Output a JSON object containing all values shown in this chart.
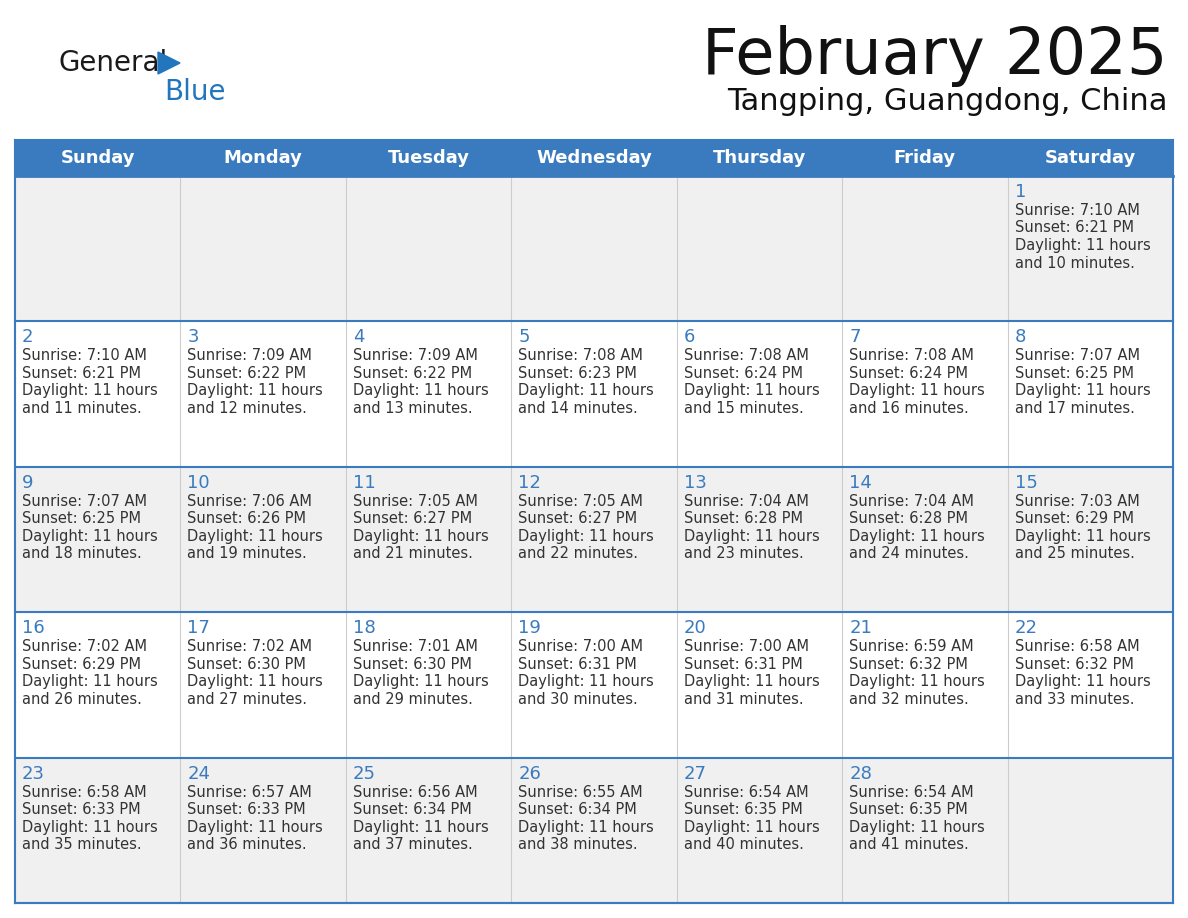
{
  "title": "February 2025",
  "subtitle": "Tangping, Guangdong, China",
  "header_color": "#3a7bbf",
  "header_text_color": "#ffffff",
  "day_names": [
    "Sunday",
    "Monday",
    "Tuesday",
    "Wednesday",
    "Thursday",
    "Friday",
    "Saturday"
  ],
  "background_color": "#ffffff",
  "cell_bg_light": "#f0f0f0",
  "cell_bg_white": "#ffffff",
  "grid_color": "#3a7bbf",
  "row_line_color": "#3a7bbf",
  "day_num_color": "#3a7bbf",
  "text_color": "#333333",
  "logo_general_color": "#1a1a1a",
  "logo_blue_color": "#2176be",
  "calendar_data": [
    [
      {
        "day": 0,
        "sunrise": "",
        "sunset": "",
        "daylight1": "",
        "daylight2": ""
      },
      {
        "day": 0,
        "sunrise": "",
        "sunset": "",
        "daylight1": "",
        "daylight2": ""
      },
      {
        "day": 0,
        "sunrise": "",
        "sunset": "",
        "daylight1": "",
        "daylight2": ""
      },
      {
        "day": 0,
        "sunrise": "",
        "sunset": "",
        "daylight1": "",
        "daylight2": ""
      },
      {
        "day": 0,
        "sunrise": "",
        "sunset": "",
        "daylight1": "",
        "daylight2": ""
      },
      {
        "day": 0,
        "sunrise": "",
        "sunset": "",
        "daylight1": "",
        "daylight2": ""
      },
      {
        "day": 1,
        "sunrise": "7:10 AM",
        "sunset": "6:21 PM",
        "daylight1": "Daylight: 11 hours",
        "daylight2": "and 10 minutes."
      }
    ],
    [
      {
        "day": 2,
        "sunrise": "7:10 AM",
        "sunset": "6:21 PM",
        "daylight1": "Daylight: 11 hours",
        "daylight2": "and 11 minutes."
      },
      {
        "day": 3,
        "sunrise": "7:09 AM",
        "sunset": "6:22 PM",
        "daylight1": "Daylight: 11 hours",
        "daylight2": "and 12 minutes."
      },
      {
        "day": 4,
        "sunrise": "7:09 AM",
        "sunset": "6:22 PM",
        "daylight1": "Daylight: 11 hours",
        "daylight2": "and 13 minutes."
      },
      {
        "day": 5,
        "sunrise": "7:08 AM",
        "sunset": "6:23 PM",
        "daylight1": "Daylight: 11 hours",
        "daylight2": "and 14 minutes."
      },
      {
        "day": 6,
        "sunrise": "7:08 AM",
        "sunset": "6:24 PM",
        "daylight1": "Daylight: 11 hours",
        "daylight2": "and 15 minutes."
      },
      {
        "day": 7,
        "sunrise": "7:08 AM",
        "sunset": "6:24 PM",
        "daylight1": "Daylight: 11 hours",
        "daylight2": "and 16 minutes."
      },
      {
        "day": 8,
        "sunrise": "7:07 AM",
        "sunset": "6:25 PM",
        "daylight1": "Daylight: 11 hours",
        "daylight2": "and 17 minutes."
      }
    ],
    [
      {
        "day": 9,
        "sunrise": "7:07 AM",
        "sunset": "6:25 PM",
        "daylight1": "Daylight: 11 hours",
        "daylight2": "and 18 minutes."
      },
      {
        "day": 10,
        "sunrise": "7:06 AM",
        "sunset": "6:26 PM",
        "daylight1": "Daylight: 11 hours",
        "daylight2": "and 19 minutes."
      },
      {
        "day": 11,
        "sunrise": "7:05 AM",
        "sunset": "6:27 PM",
        "daylight1": "Daylight: 11 hours",
        "daylight2": "and 21 minutes."
      },
      {
        "day": 12,
        "sunrise": "7:05 AM",
        "sunset": "6:27 PM",
        "daylight1": "Daylight: 11 hours",
        "daylight2": "and 22 minutes."
      },
      {
        "day": 13,
        "sunrise": "7:04 AM",
        "sunset": "6:28 PM",
        "daylight1": "Daylight: 11 hours",
        "daylight2": "and 23 minutes."
      },
      {
        "day": 14,
        "sunrise": "7:04 AM",
        "sunset": "6:28 PM",
        "daylight1": "Daylight: 11 hours",
        "daylight2": "and 24 minutes."
      },
      {
        "day": 15,
        "sunrise": "7:03 AM",
        "sunset": "6:29 PM",
        "daylight1": "Daylight: 11 hours",
        "daylight2": "and 25 minutes."
      }
    ],
    [
      {
        "day": 16,
        "sunrise": "7:02 AM",
        "sunset": "6:29 PM",
        "daylight1": "Daylight: 11 hours",
        "daylight2": "and 26 minutes."
      },
      {
        "day": 17,
        "sunrise": "7:02 AM",
        "sunset": "6:30 PM",
        "daylight1": "Daylight: 11 hours",
        "daylight2": "and 27 minutes."
      },
      {
        "day": 18,
        "sunrise": "7:01 AM",
        "sunset": "6:30 PM",
        "daylight1": "Daylight: 11 hours",
        "daylight2": "and 29 minutes."
      },
      {
        "day": 19,
        "sunrise": "7:00 AM",
        "sunset": "6:31 PM",
        "daylight1": "Daylight: 11 hours",
        "daylight2": "and 30 minutes."
      },
      {
        "day": 20,
        "sunrise": "7:00 AM",
        "sunset": "6:31 PM",
        "daylight1": "Daylight: 11 hours",
        "daylight2": "and 31 minutes."
      },
      {
        "day": 21,
        "sunrise": "6:59 AM",
        "sunset": "6:32 PM",
        "daylight1": "Daylight: 11 hours",
        "daylight2": "and 32 minutes."
      },
      {
        "day": 22,
        "sunrise": "6:58 AM",
        "sunset": "6:32 PM",
        "daylight1": "Daylight: 11 hours",
        "daylight2": "and 33 minutes."
      }
    ],
    [
      {
        "day": 23,
        "sunrise": "6:58 AM",
        "sunset": "6:33 PM",
        "daylight1": "Daylight: 11 hours",
        "daylight2": "and 35 minutes."
      },
      {
        "day": 24,
        "sunrise": "6:57 AM",
        "sunset": "6:33 PM",
        "daylight1": "Daylight: 11 hours",
        "daylight2": "and 36 minutes."
      },
      {
        "day": 25,
        "sunrise": "6:56 AM",
        "sunset": "6:34 PM",
        "daylight1": "Daylight: 11 hours",
        "daylight2": "and 37 minutes."
      },
      {
        "day": 26,
        "sunrise": "6:55 AM",
        "sunset": "6:34 PM",
        "daylight1": "Daylight: 11 hours",
        "daylight2": "and 38 minutes."
      },
      {
        "day": 27,
        "sunrise": "6:54 AM",
        "sunset": "6:35 PM",
        "daylight1": "Daylight: 11 hours",
        "daylight2": "and 40 minutes."
      },
      {
        "day": 28,
        "sunrise": "6:54 AM",
        "sunset": "6:35 PM",
        "daylight1": "Daylight: 11 hours",
        "daylight2": "and 41 minutes."
      },
      {
        "day": 0,
        "sunrise": "",
        "sunset": "",
        "daylight1": "",
        "daylight2": ""
      }
    ]
  ]
}
